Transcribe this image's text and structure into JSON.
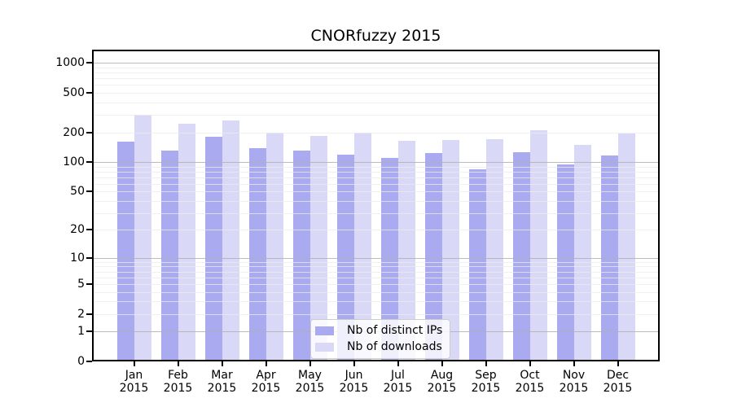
{
  "title": "CNORfuzzy 2015",
  "chart_data": {
    "type": "bar",
    "title": "CNORfuzzy 2015",
    "categories": [
      "Jan 2015",
      "Feb 2015",
      "Mar 2015",
      "Apr 2015",
      "May 2015",
      "Jun 2015",
      "Jul 2015",
      "Aug 2015",
      "Sep 2015",
      "Oct 2015",
      "Nov 2015",
      "Dec 2015"
    ],
    "x_tick_months": [
      "Jan",
      "Feb",
      "Mar",
      "Apr",
      "May",
      "Jun",
      "Jul",
      "Aug",
      "Sep",
      "Oct",
      "Nov",
      "Dec"
    ],
    "x_tick_year": "2015",
    "series": [
      {
        "name": "Nb of distinct IPs",
        "color": "#aaaaf0",
        "values": [
          160,
          131,
          182,
          139,
          131,
          118,
          110,
          123,
          85,
          126,
          94,
          117
        ]
      },
      {
        "name": "Nb of downloads",
        "color": "#d9d9f7",
        "values": [
          300,
          243,
          264,
          198,
          183,
          197,
          164,
          166,
          170,
          212,
          148,
          193
        ]
      }
    ],
    "xlabel": "",
    "ylabel": "",
    "yscale": "log10(1+x)",
    "ylim": [
      0,
      1361
    ],
    "yticks": [
      0,
      1,
      2,
      5,
      10,
      20,
      50,
      100,
      200,
      500,
      1000
    ],
    "ytick_labels": [
      "0",
      "1",
      "2",
      "5",
      "10",
      "20",
      "50",
      "100",
      "200",
      "500",
      "1000"
    ],
    "grid": "horizontal major and minor log gridlines, drawn over bars",
    "grid_major_color": "#b0b0b0",
    "grid_minor_color": "#ebebeb",
    "axis_color": "#000000",
    "legend_position": "lower center"
  }
}
